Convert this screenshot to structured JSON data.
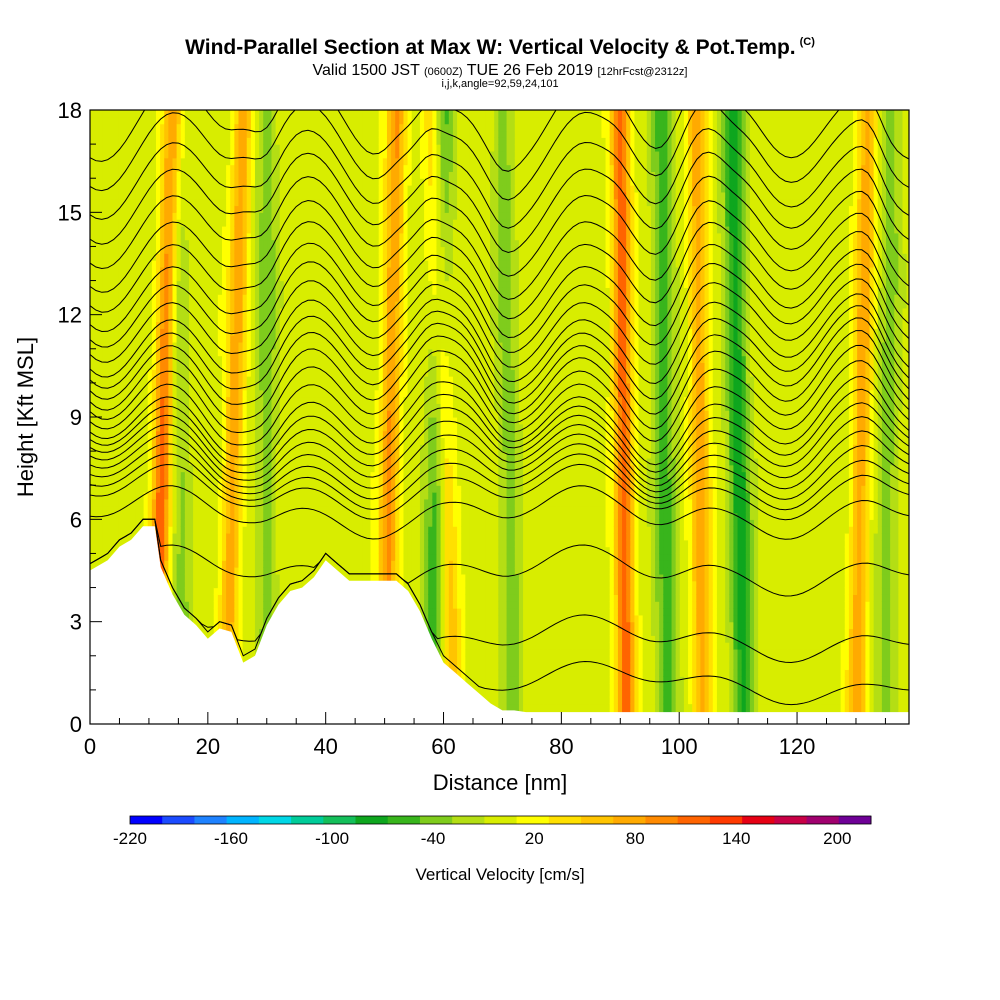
{
  "header": {
    "title": "Wind-Parallel Section at Max W: Vertical Velocity & Pot.Temp.",
    "copyright": "(C)",
    "sub_a": "Valid 1500 JST",
    "sub_b": "(0600Z)",
    "sub_c": "TUE 26 Feb 2019",
    "sub_d": "[12hrFcst@2312z]",
    "sub2": "i,j,k,angle=92,59,24,101"
  },
  "chart_data": {
    "type": "heatmap",
    "title": "Wind-Parallel Section at Max W: Vertical Velocity & Pot.Temp.",
    "xlabel": "Distance [nm]",
    "ylabel": "Height [Kft MSL]",
    "xlim": [
      0,
      139
    ],
    "ylim": [
      0,
      18
    ],
    "x_ticks": [
      0,
      20,
      40,
      60,
      80,
      100,
      120
    ],
    "y_ticks": [
      0,
      3,
      6,
      9,
      12,
      15,
      18
    ],
    "grid": false,
    "colorbar": {
      "label": "Vertical Velocity [cm/s]",
      "placement": "bottom",
      "ticks": [
        -220,
        -160,
        -100,
        -40,
        20,
        80,
        140,
        200
      ],
      "levels": [
        -220,
        -200,
        -180,
        -160,
        -140,
        -120,
        -100,
        -80,
        -60,
        -40,
        -20,
        0,
        20,
        40,
        60,
        80,
        100,
        120,
        140,
        160,
        180,
        200,
        220
      ],
      "colors": [
        "#0000ff",
        "#1b4bff",
        "#1e82ff",
        "#00b4ff",
        "#00d7e6",
        "#00cc99",
        "#14bf5a",
        "#0ea61e",
        "#38b51c",
        "#7fcc1c",
        "#b4de14",
        "#d8ed00",
        "#ffff00",
        "#ffe000",
        "#ffc400",
        "#ffaa00",
        "#ff8a00",
        "#ff6400",
        "#ff3a00",
        "#e60014",
        "#c80046",
        "#a0006e",
        "#6e0096"
      ]
    },
    "terrain_kft": {
      "x": [
        0,
        3,
        5,
        7,
        9,
        11,
        12,
        14,
        16,
        18,
        20,
        22,
        24,
        26,
        28,
        30,
        32,
        34,
        36,
        38,
        40,
        42,
        44,
        46,
        48,
        50,
        52,
        54,
        56,
        58,
        60,
        62,
        64,
        66,
        68,
        70,
        72,
        74,
        76,
        78,
        80,
        139
      ],
      "height": [
        4.5,
        4.8,
        5.2,
        5.4,
        5.8,
        5.8,
        4.6,
        3.8,
        3.2,
        2.9,
        2.5,
        2.8,
        2.7,
        1.8,
        2.0,
        2.9,
        3.5,
        3.9,
        4.0,
        4.3,
        4.8,
        4.5,
        4.2,
        4.2,
        4.2,
        4.2,
        4.2,
        3.9,
        3.3,
        2.5,
        1.8,
        1.5,
        1.2,
        0.9,
        0.6,
        0.4,
        0.4,
        0.35,
        0.35,
        0.35,
        0.35,
        0.35
      ]
    },
    "updraft_axes": [
      {
        "x_bottom": 11,
        "x_top": 14,
        "peak_cm_s": 120,
        "type": "updraft"
      },
      {
        "x_bottom": 23,
        "x_top": 26,
        "peak_cm_s": 80,
        "type": "updraft"
      },
      {
        "x_bottom": 50,
        "x_top": 52,
        "peak_cm_s": 90,
        "type": "updraft"
      },
      {
        "x_bottom": 62,
        "x_top": 58,
        "peak_cm_s": 60,
        "type": "updraft"
      },
      {
        "x_bottom": 91,
        "x_top": 90,
        "peak_cm_s": 120,
        "type": "updraft"
      },
      {
        "x_bottom": 104,
        "x_top": 103,
        "peak_cm_s": 80,
        "type": "updraft"
      },
      {
        "x_bottom": 130,
        "x_top": 132,
        "peak_cm_s": 80,
        "type": "updraft"
      },
      {
        "x_bottom": 16,
        "x_top": 14,
        "peak_cm_s": -40,
        "type": "downdraft"
      },
      {
        "x_bottom": 30,
        "x_top": 30,
        "peak_cm_s": -40,
        "type": "downdraft"
      },
      {
        "x_bottom": 58,
        "x_top": 60,
        "peak_cm_s": -60,
        "type": "downdraft"
      },
      {
        "x_bottom": 72,
        "x_top": 70,
        "peak_cm_s": -40,
        "type": "downdraft"
      },
      {
        "x_bottom": 98,
        "x_top": 97,
        "peak_cm_s": -60,
        "type": "downdraft"
      },
      {
        "x_bottom": 111,
        "x_top": 109,
        "peak_cm_s": -80,
        "type": "downdraft"
      },
      {
        "x_bottom": 135,
        "x_top": 136,
        "peak_cm_s": -40,
        "type": "downdraft"
      }
    ],
    "isentrope_count": 28,
    "isentrope_kft": [
      1.2,
      2.5,
      4.5,
      6.2,
      6.8,
      7.1,
      7.4,
      7.7,
      8.0,
      8.3,
      8.6,
      8.9,
      9.3,
      9.7,
      10.1,
      10.5,
      10.9,
      11.3,
      11.8,
      12.3,
      12.8,
      13.4,
      14.0,
      14.7,
      15.4,
      16.1,
      16.9,
      17.7
    ]
  }
}
